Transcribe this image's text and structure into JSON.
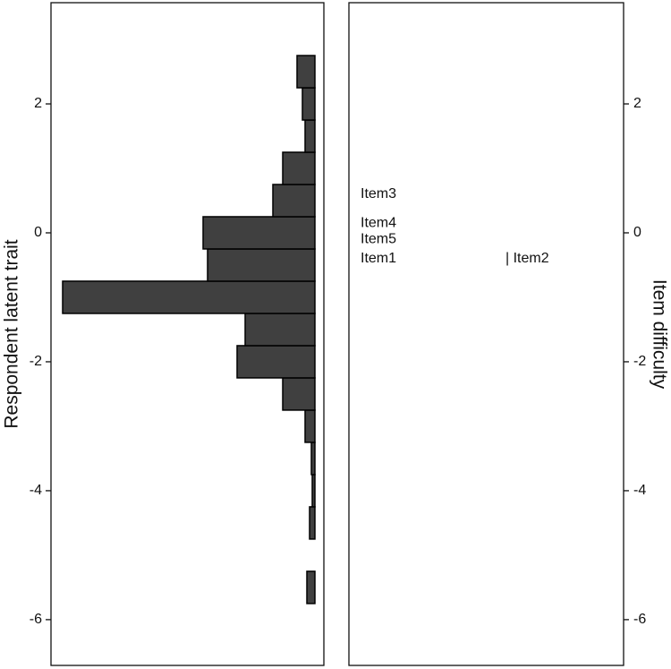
{
  "chart_data": {
    "type": "wright-map",
    "y_label": "Respondent latent trait",
    "y2_label": "Item difficulty",
    "ylim": [
      -6.71,
      3.57
    ],
    "yticks": [
      -6,
      -4,
      -2,
      0,
      2
    ],
    "y2lim": [
      -6.71,
      3.57
    ],
    "y2ticks": [
      -6,
      -4,
      -2,
      0,
      2
    ],
    "persons": {
      "type": "histogram",
      "color": "#404040",
      "bins": [
        -5.75,
        -5.25,
        -4.75,
        -4.25,
        -3.75,
        -3.25,
        -2.75,
        -2.25,
        -1.75,
        -1.25,
        -0.75,
        -0.25,
        0.25,
        0.75,
        1.25,
        1.75,
        2.25,
        2.75
      ],
      "counts": [
        9,
        0,
        6,
        3,
        4,
        11,
        36,
        87,
        78,
        282,
        120,
        125,
        47,
        36,
        11,
        14,
        20
      ]
    },
    "items": {
      "labels": [
        "Item1",
        "| Item2",
        "Item3",
        "Item4",
        "Item5"
      ],
      "values": [
        -0.4,
        -0.4,
        0.6,
        0.15,
        -0.1
      ]
    }
  }
}
